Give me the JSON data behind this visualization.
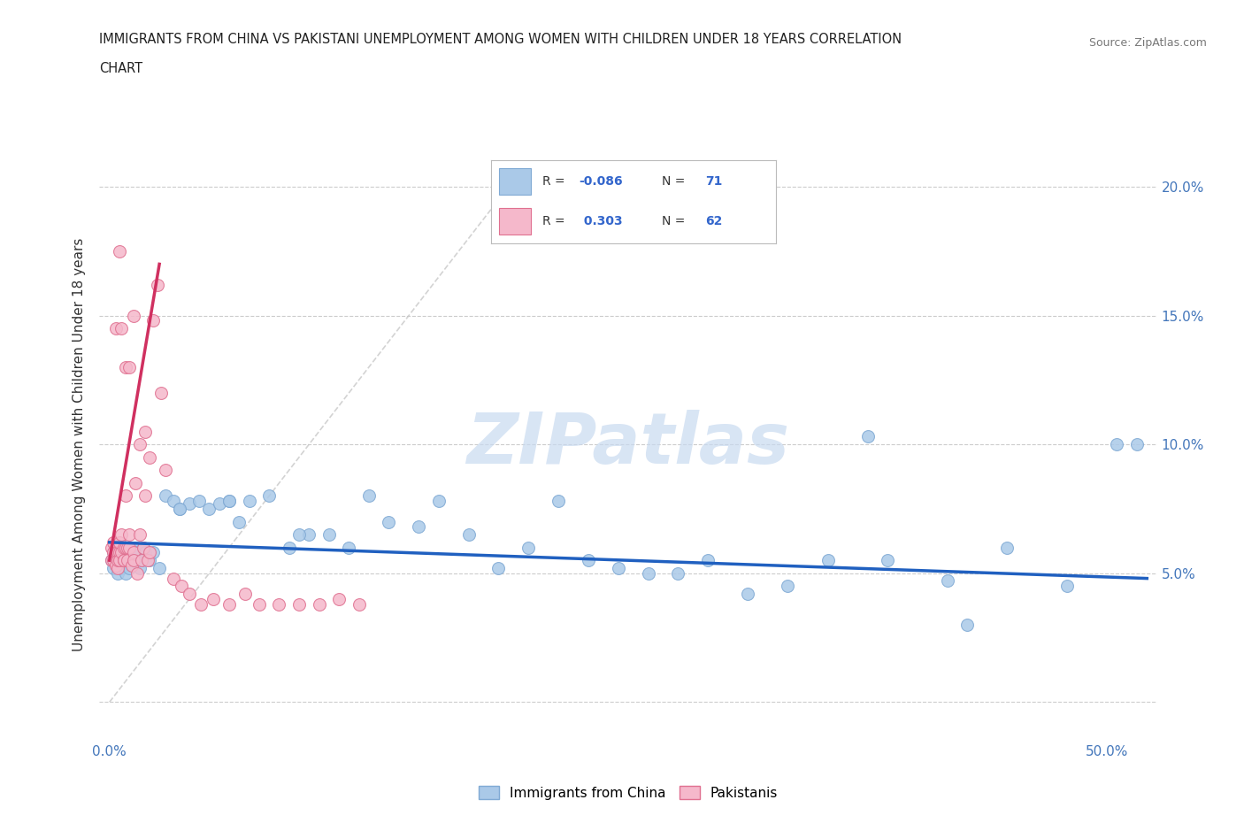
{
  "title_line1": "IMMIGRANTS FROM CHINA VS PAKISTANI UNEMPLOYMENT AMONG WOMEN WITH CHILDREN UNDER 18 YEARS CORRELATION",
  "title_line2": "CHART",
  "source_text": "Source: ZipAtlas.com",
  "ylabel": "Unemployment Among Women with Children Under 18 years",
  "xlim": [
    -0.005,
    0.525
  ],
  "ylim": [
    -0.015,
    0.215
  ],
  "china_color": "#aac9e8",
  "china_edge_color": "#80aad4",
  "pakistan_color": "#f5b8cb",
  "pakistan_edge_color": "#e07090",
  "trend_china_color": "#2060c0",
  "trend_pakistan_color": "#d03060",
  "diagonal_color": "#c8c8c8",
  "watermark_color": "#c8daf0",
  "legend_items": [
    "Immigrants from China",
    "Pakistanis"
  ],
  "china_x": [
    0.001,
    0.002,
    0.002,
    0.003,
    0.003,
    0.004,
    0.004,
    0.005,
    0.005,
    0.006,
    0.006,
    0.007,
    0.007,
    0.008,
    0.008,
    0.009,
    0.01,
    0.01,
    0.011,
    0.012,
    0.013,
    0.014,
    0.015,
    0.016,
    0.017,
    0.018,
    0.02,
    0.022,
    0.025,
    0.028,
    0.032,
    0.035,
    0.04,
    0.045,
    0.05,
    0.055,
    0.06,
    0.065,
    0.07,
    0.08,
    0.09,
    0.1,
    0.11,
    0.12,
    0.13,
    0.14,
    0.155,
    0.165,
    0.18,
    0.195,
    0.21,
    0.225,
    0.24,
    0.255,
    0.27,
    0.285,
    0.3,
    0.32,
    0.34,
    0.36,
    0.39,
    0.42,
    0.45,
    0.48,
    0.505,
    0.515,
    0.035,
    0.06,
    0.095,
    0.38,
    0.43
  ],
  "china_y": [
    0.055,
    0.058,
    0.052,
    0.06,
    0.055,
    0.058,
    0.05,
    0.055,
    0.06,
    0.052,
    0.058,
    0.053,
    0.055,
    0.058,
    0.05,
    0.055,
    0.057,
    0.052,
    0.058,
    0.055,
    0.06,
    0.058,
    0.052,
    0.055,
    0.06,
    0.058,
    0.055,
    0.058,
    0.052,
    0.08,
    0.078,
    0.075,
    0.077,
    0.078,
    0.075,
    0.077,
    0.078,
    0.07,
    0.078,
    0.08,
    0.06,
    0.065,
    0.065,
    0.06,
    0.08,
    0.07,
    0.068,
    0.078,
    0.065,
    0.052,
    0.06,
    0.078,
    0.055,
    0.052,
    0.05,
    0.05,
    0.055,
    0.042,
    0.045,
    0.055,
    0.055,
    0.047,
    0.06,
    0.045,
    0.1,
    0.1,
    0.075,
    0.078,
    0.065,
    0.103,
    0.03
  ],
  "pakistan_x": [
    0.001,
    0.001,
    0.002,
    0.002,
    0.002,
    0.003,
    0.003,
    0.003,
    0.004,
    0.004,
    0.004,
    0.005,
    0.005,
    0.005,
    0.006,
    0.006,
    0.007,
    0.007,
    0.007,
    0.008,
    0.008,
    0.009,
    0.009,
    0.01,
    0.01,
    0.011,
    0.012,
    0.012,
    0.013,
    0.014,
    0.015,
    0.016,
    0.017,
    0.018,
    0.019,
    0.02,
    0.022,
    0.024,
    0.026,
    0.028,
    0.032,
    0.036,
    0.04,
    0.046,
    0.052,
    0.06,
    0.068,
    0.075,
    0.085,
    0.095,
    0.105,
    0.115,
    0.125,
    0.005,
    0.003,
    0.006,
    0.008,
    0.01,
    0.012,
    0.015,
    0.018,
    0.02
  ],
  "pakistan_y": [
    0.055,
    0.06,
    0.058,
    0.062,
    0.055,
    0.06,
    0.058,
    0.053,
    0.058,
    0.052,
    0.055,
    0.058,
    0.055,
    0.062,
    0.065,
    0.058,
    0.055,
    0.06,
    0.055,
    0.08,
    0.06,
    0.055,
    0.06,
    0.065,
    0.06,
    0.053,
    0.058,
    0.055,
    0.085,
    0.05,
    0.065,
    0.055,
    0.06,
    0.08,
    0.055,
    0.058,
    0.148,
    0.162,
    0.12,
    0.09,
    0.048,
    0.045,
    0.042,
    0.038,
    0.04,
    0.038,
    0.042,
    0.038,
    0.038,
    0.038,
    0.038,
    0.04,
    0.038,
    0.175,
    0.145,
    0.145,
    0.13,
    0.13,
    0.15,
    0.1,
    0.105,
    0.095
  ]
}
